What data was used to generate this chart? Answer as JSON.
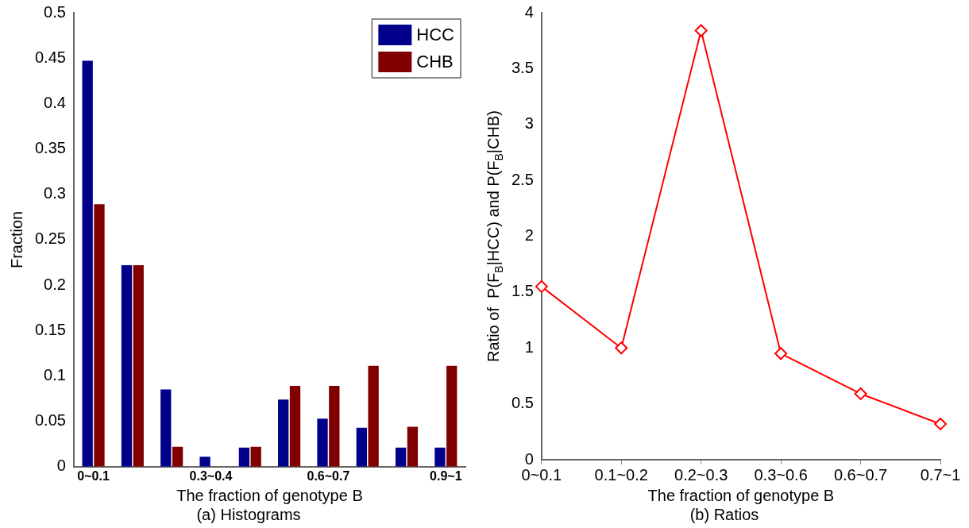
{
  "chart_data": [
    {
      "type": "bar",
      "title": "(a) Histograms",
      "xlabel": "The fraction of genotype B",
      "ylabel": "Fraction",
      "categories": [
        "0~0.1",
        null,
        null,
        "0.3~0.4",
        null,
        null,
        "0.6~0.7",
        null,
        null,
        "0.9~1"
      ],
      "series": [
        {
          "name": "HCC",
          "color": "#00008b",
          "values": [
            0.447,
            0.222,
            0.085,
            0.011,
            0.021,
            0.074,
            0.053,
            0.043,
            0.021,
            0.021
          ]
        },
        {
          "name": "CHB",
          "color": "#800000",
          "values": [
            0.289,
            0.222,
            0.022,
            0,
            0.022,
            0.089,
            0.089,
            0.111,
            0.044,
            0.111
          ]
        }
      ],
      "ylim": [
        0,
        0.5
      ],
      "yticks": [
        0,
        0.05,
        0.1,
        0.15,
        0.2,
        0.25,
        0.3,
        0.35,
        0.4,
        0.45,
        0.5
      ],
      "grid": false,
      "legend": "top right"
    },
    {
      "type": "line",
      "title": "(b) Ratios",
      "xlabel": "The fraction of genotype B",
      "ylabel": "Ratio of  P(F$_{B}$|HCC) and P(F$_{B}$|CHB)",
      "categories": [
        "0~0.1",
        "0.1~0.2",
        "0.2~0.3",
        "0.3~0.6",
        "0.6~0.7",
        "0.7~1"
      ],
      "series": [
        {
          "color": "#ff0000",
          "values": [
            1.55,
            1.0,
            3.84,
            0.95,
            0.59,
            0.32
          ]
        }
      ],
      "ylim": [
        0,
        4
      ],
      "yticks": [
        0,
        0.5,
        1,
        1.5,
        2,
        2.5,
        3,
        3.5,
        4
      ],
      "grid": false,
      "legend": false,
      "marker": "diamond",
      "line_style": "solid"
    }
  ]
}
